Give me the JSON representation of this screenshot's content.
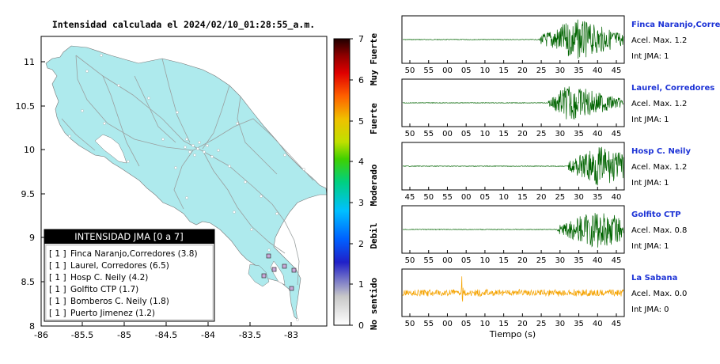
{
  "map": {
    "title": "Intensidad calculada el 2024/02/10_01:28:55_a.m.",
    "xticks": [
      "-86",
      "-85.5",
      "-85",
      "-84.5",
      "-84",
      "-83.5",
      "-83"
    ],
    "yticks": [
      "11",
      "10.5",
      "10",
      "9.5",
      "9",
      "8.5",
      "8"
    ],
    "xlim": [
      -86,
      -82.6
    ],
    "ylim": [
      8,
      11.3
    ]
  },
  "colorbar": {
    "ticks": [
      "0",
      "1",
      "2",
      "3",
      "4",
      "5",
      "6",
      "7"
    ],
    "categories": [
      "No sentido",
      "Debil",
      "Moderado",
      "Fuerte",
      "Muy Fuerte"
    ]
  },
  "legend": {
    "title": "INTENSIDAD JMA [0 a 7]",
    "items": [
      {
        "level": "[ 1 ]",
        "station": "Finca Naranjo,Corredores (3.8)"
      },
      {
        "level": "[ 1 ]",
        "station": "Laurel, Corredores (6.5)"
      },
      {
        "level": "[ 1 ]",
        "station": "Hosp C. Neily (4.2)"
      },
      {
        "level": "[ 1 ]",
        "station": "Golfito CTP (1.7)"
      },
      {
        "level": "[ 1 ]",
        "station": "Bomberos C. Neily (1.8)"
      },
      {
        "level": "[ 1 ]",
        "station": "Puerto Jimenez (1.2)"
      }
    ]
  },
  "traces": [
    {
      "name": "Finca Naranjo,Corredor",
      "acel": "Acel. Max. 1.2",
      "jma": "Int JMA: 1",
      "color": "#006400",
      "ticks": [
        "50",
        "55",
        "00",
        "05",
        "10",
        "15",
        "20",
        "25",
        "30",
        "35",
        "40",
        "45"
      ],
      "onset": 0.62,
      "peak": 0.78,
      "amp": 0.95
    },
    {
      "name": "Laurel, Corredores",
      "acel": "Acel. Max. 1.2",
      "jma": "Int JMA: 1",
      "color": "#006400",
      "ticks": [
        "50",
        "55",
        "00",
        "05",
        "10",
        "15",
        "20",
        "25",
        "30",
        "35",
        "40",
        "45"
      ],
      "onset": 0.66,
      "peak": 0.75,
      "amp": 0.85
    },
    {
      "name": "Hosp C. Neily",
      "acel": "Acel. Max. 1.2",
      "jma": "Int JMA: 1",
      "color": "#006400",
      "ticks": [
        "45",
        "50",
        "55",
        "00",
        "05",
        "10",
        "15",
        "20",
        "25",
        "30",
        "35",
        "40"
      ],
      "onset": 0.75,
      "peak": 0.88,
      "amp": 0.95
    },
    {
      "name": "Golfito CTP",
      "acel": "Acel. Max. 0.8",
      "jma": "Int JMA: 1",
      "color": "#006400",
      "ticks": [
        "50",
        "55",
        "00",
        "05",
        "10",
        "15",
        "20",
        "25",
        "30",
        "35",
        "40",
        "45"
      ],
      "onset": 0.7,
      "peak": 0.88,
      "amp": 0.9
    },
    {
      "name": "La Sabana",
      "acel": "Acel. Max. 0.0",
      "jma": "Int JMA: 0",
      "color": "#f5a300",
      "ticks": [
        "50",
        "55",
        "00",
        "05",
        "10",
        "15",
        "20",
        "25",
        "30",
        "35",
        "40",
        "45"
      ],
      "onset": 0.0,
      "peak": 0.27,
      "amp": 0.35
    }
  ],
  "xlabel": "Tiempo (s)"
}
